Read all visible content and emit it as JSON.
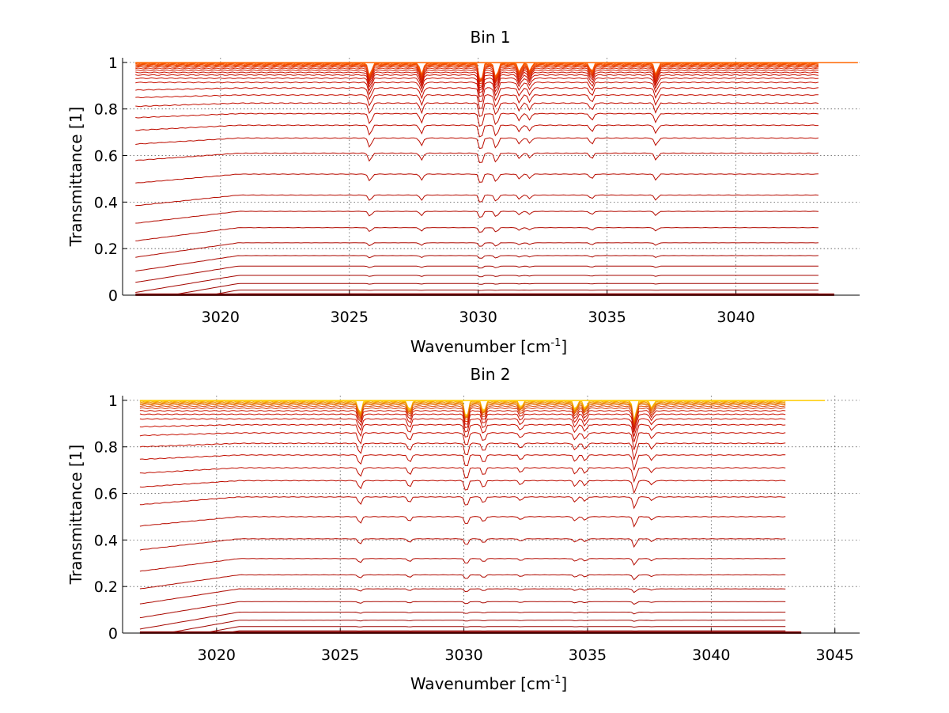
{
  "chart_data": [
    {
      "type": "line",
      "title": "Bin 1",
      "xlabel": "Wavenumber [cm",
      "xlabel_sup": "-1",
      "xlabel_end": "]",
      "ylabel": "Transmittance [1]",
      "xlim": [
        3016.2,
        3044.8
      ],
      "ylim": [
        0,
        1.02
      ],
      "xticks": [
        3020,
        3025,
        3030,
        3035,
        3040
      ],
      "xtick_labels": [
        "3020",
        "3025",
        "3030",
        "3035",
        "3040"
      ],
      "yticks": [
        0,
        0.2,
        0.4,
        0.6,
        0.8,
        1
      ],
      "ytick_labels": [
        "0",
        "0.2",
        "0.4",
        "0.6",
        "0.8",
        "1"
      ],
      "grid": true,
      "line_colors": [
        "#8b0000",
        "#cc1100",
        "#ff6600"
      ],
      "x_start": 3016.7,
      "x_end": 3043.2,
      "absorption_lines": [
        {
          "x": 3025.8,
          "depth": 0.06
        },
        {
          "x": 3027.8,
          "depth": 0.05
        },
        {
          "x": 3030.1,
          "depth": 0.09
        },
        {
          "x": 3030.7,
          "depth": 0.07
        },
        {
          "x": 3031.6,
          "depth": 0.04
        },
        {
          "x": 3032.0,
          "depth": 0.035
        },
        {
          "x": 3034.4,
          "depth": 0.04
        },
        {
          "x": 3036.9,
          "depth": 0.05
        }
      ],
      "series_baselines": [
        0.998,
        0.995,
        0.992,
        0.989,
        0.985,
        0.98,
        0.974,
        0.966,
        0.957,
        0.946,
        0.932,
        0.914,
        0.89,
        0.86,
        0.825,
        0.78,
        0.73,
        0.675,
        0.61,
        0.52,
        0.43,
        0.36,
        0.29,
        0.225,
        0.17,
        0.125,
        0.085,
        0.05,
        0.022,
        0.006
      ]
    },
    {
      "type": "line",
      "title": "Bin 2",
      "xlabel": "Wavenumber [cm",
      "xlabel_sup": "-1",
      "xlabel_end": "]",
      "ylabel": "Transmittance [1]",
      "xlim": [
        3016.2,
        3046
      ],
      "ylim": [
        0,
        1.02
      ],
      "xticks": [
        3020,
        3025,
        3030,
        3035,
        3040,
        3045
      ],
      "xtick_labels": [
        "3020",
        "3025",
        "3030",
        "3035",
        "3040",
        "3045"
      ],
      "yticks": [
        0,
        0.2,
        0.4,
        0.6,
        0.8,
        1
      ],
      "ytick_labels": [
        "0",
        "0.2",
        "0.4",
        "0.6",
        "0.8",
        "1"
      ],
      "grid": true,
      "line_colors": [
        "#8b0000",
        "#cc1100",
        "#ffcc00"
      ],
      "x_start": 3016.9,
      "x_end": 3043.0,
      "absorption_lines": [
        {
          "x": 3025.8,
          "depth": 0.06
        },
        {
          "x": 3027.8,
          "depth": 0.045
        },
        {
          "x": 3030.1,
          "depth": 0.08
        },
        {
          "x": 3030.8,
          "depth": 0.05
        },
        {
          "x": 3032.3,
          "depth": 0.03
        },
        {
          "x": 3034.5,
          "depth": 0.04
        },
        {
          "x": 3034.9,
          "depth": 0.035
        },
        {
          "x": 3036.9,
          "depth": 0.09
        },
        {
          "x": 3037.6,
          "depth": 0.03
        }
      ],
      "series_baselines": [
        0.998,
        0.995,
        0.991,
        0.987,
        0.982,
        0.975,
        0.966,
        0.955,
        0.94,
        0.92,
        0.895,
        0.86,
        0.815,
        0.765,
        0.71,
        0.655,
        0.585,
        0.5,
        0.405,
        0.32,
        0.25,
        0.19,
        0.135,
        0.09,
        0.055,
        0.028,
        0.01
      ]
    }
  ]
}
